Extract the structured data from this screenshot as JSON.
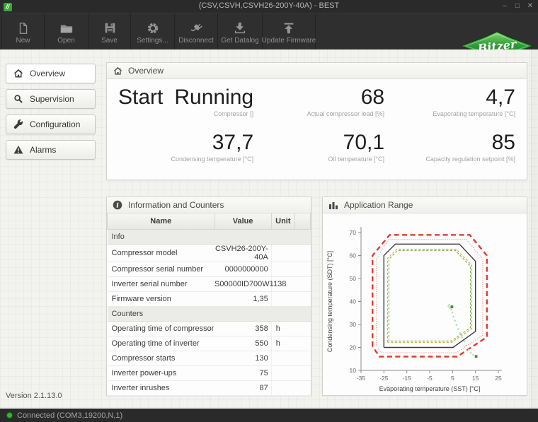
{
  "window": {
    "title": "(CSV,CSVH,CSVH26-200Y-40A) - BEST",
    "controls": {
      "minimize": "–",
      "maximize": "□",
      "close": "✕"
    }
  },
  "toolbar": {
    "buttons": [
      {
        "label": "New"
      },
      {
        "label": "Open"
      },
      {
        "label": "Save"
      },
      {
        "label": "Settings..."
      },
      {
        "label": "Disconnect"
      },
      {
        "label": "Get Datalog"
      },
      {
        "label": "Update Firmware"
      }
    ],
    "logo_text": "Bitzer"
  },
  "icons": {
    "app-icon": "bitzer-green-square",
    "new-button": "blank-page",
    "open-button": "folder",
    "save-button": "floppy-disk",
    "settings-button": "gear",
    "disconnect-button": "plug",
    "get-datalog-button": "arrow-down-into-tray",
    "update-firmware-button": "arrow-up-to-bar",
    "sidebar-overview": "home",
    "sidebar-supervision": "magnifier",
    "sidebar-configuration": "wrench",
    "sidebar-alarms": "warning-triangle",
    "information-panel": "info-circle",
    "application-range-panel": "bar-chart",
    "statusbar": "green-dot"
  },
  "sidebar": {
    "items": [
      {
        "label": "Overview",
        "selected": true
      },
      {
        "label": "Supervision",
        "selected": false
      },
      {
        "label": "Configuration",
        "selected": false
      },
      {
        "label": "Alarms",
        "selected": false
      }
    ]
  },
  "overview": {
    "title": "Overview",
    "compressor": {
      "start": "Start",
      "status": "Running",
      "label": "Compressor []"
    },
    "metrics": [
      {
        "value": "68",
        "label": "Actual compressor load [%]"
      },
      {
        "value": "4,7",
        "label": "Evaporating temperature [°C]"
      },
      {
        "value": "37,7",
        "label": "Condensing temperature [°C]"
      },
      {
        "value": "70,1",
        "label": "Oil temperature [°C]"
      },
      {
        "value": "85",
        "label": "Capacity regulation setpoint [%]"
      }
    ]
  },
  "info_panel": {
    "title": "Information and Counters",
    "columns": [
      "Name",
      "Value",
      "Unit"
    ],
    "sections": [
      {
        "name": "Info",
        "rows": [
          [
            "Compressor model",
            "CSVH26-200Y-40A",
            ""
          ],
          [
            "Compressor serial number",
            "0000000000",
            ""
          ],
          [
            "Inverter serial number",
            "S00000ID700W1138",
            ""
          ],
          [
            "Firmware version",
            "1,35",
            ""
          ]
        ]
      },
      {
        "name": "Counters",
        "rows": [
          [
            "Operating time of compressor",
            "358",
            "h"
          ],
          [
            "Operating time of inverter",
            "550",
            "h"
          ],
          [
            "Compressor starts",
            "130",
            ""
          ],
          [
            "Inverter power-ups",
            "75",
            ""
          ],
          [
            "Inverter inrushes",
            "87",
            ""
          ]
        ]
      }
    ]
  },
  "chart_panel": {
    "title": "Application Range"
  },
  "chart_data": {
    "type": "line",
    "title": "Application Range",
    "xlabel": "Evaporating temperature (SST) [°C]",
    "ylabel": "Condensing temperature (SDT) [°C]",
    "xlim": [
      -35,
      25
    ],
    "ylim": [
      10,
      70
    ],
    "xticks": [
      -35,
      -25,
      -15,
      -5,
      5,
      15,
      25
    ],
    "yticks": [
      10,
      20,
      30,
      40,
      50,
      60,
      70
    ],
    "grid": false,
    "legend": "none",
    "series": [
      {
        "name": "absolute-limit-envelope",
        "color": "#e03c31",
        "style": "dash-thick",
        "points": [
          [
            -30,
            20.5
          ],
          [
            -30,
            60
          ],
          [
            -22.5,
            69
          ],
          [
            12.5,
            69
          ],
          [
            20,
            60
          ],
          [
            20,
            24.5
          ],
          [
            7,
            16
          ],
          [
            -27,
            16
          ],
          [
            -30,
            20.5
          ]
        ]
      },
      {
        "name": "outer-warning-envelope",
        "color": "#e8958d",
        "style": "dot",
        "points": [
          [
            -28.3,
            21
          ],
          [
            -28.3,
            58.5
          ],
          [
            -23,
            67
          ],
          [
            11,
            67
          ],
          [
            18.2,
            58.5
          ],
          [
            18.2,
            25.3
          ],
          [
            6.7,
            17.7
          ],
          [
            -26.3,
            17.7
          ],
          [
            -28.3,
            21
          ]
        ]
      },
      {
        "name": "operating-envelope",
        "color": "#3a3a3a",
        "style": "solid",
        "points": [
          [
            -25,
            20
          ],
          [
            -25,
            60
          ],
          [
            -20,
            65
          ],
          [
            8,
            65
          ],
          [
            15,
            57.5
          ],
          [
            15,
            27
          ],
          [
            5.2,
            20
          ],
          [
            -25,
            20
          ]
        ]
      },
      {
        "name": "inner-envelope-yellow",
        "color": "#c9a83a",
        "style": "dash",
        "points": [
          [
            -23.4,
            22.2
          ],
          [
            -23.4,
            58.8
          ],
          [
            -19.3,
            62.8
          ],
          [
            6.6,
            62.8
          ],
          [
            13.4,
            55.8
          ],
          [
            13.4,
            28.2
          ],
          [
            4.6,
            22.2
          ],
          [
            -23.4,
            22.2
          ]
        ]
      },
      {
        "name": "inner-envelope-green",
        "color": "#7cab44",
        "style": "dash",
        "points": [
          [
            -22.8,
            22.8
          ],
          [
            -22.8,
            58.4
          ],
          [
            -19,
            62.2
          ],
          [
            6.2,
            62.2
          ],
          [
            12.8,
            55.4
          ],
          [
            12.8,
            28.6
          ],
          [
            4.4,
            22.8
          ],
          [
            -22.8,
            22.8
          ]
        ]
      },
      {
        "name": "operating-trail",
        "color": "#b9dcb4",
        "style": "dots",
        "points": [
          [
            3.6,
            38.6
          ],
          [
            3.2,
            37.9
          ],
          [
            3.8,
            37.1
          ],
          [
            4.5,
            36.6
          ],
          [
            4.9,
            35.2
          ],
          [
            5.4,
            33.4
          ],
          [
            6.0,
            31.6
          ],
          [
            6.7,
            29.8
          ],
          [
            7.5,
            28.0
          ],
          [
            8.3,
            26.2
          ],
          [
            9.2,
            24.4
          ],
          [
            10.1,
            22.6
          ],
          [
            11.0,
            20.8
          ],
          [
            12.0,
            19.0
          ],
          [
            13.0,
            17.6
          ],
          [
            14.0,
            16.8
          ]
        ]
      },
      {
        "name": "operating-points",
        "color": "#3f8c3a",
        "style": "squares",
        "points": [
          [
            4.7,
            37.7
          ],
          [
            15.3,
            16.1
          ]
        ]
      }
    ]
  },
  "version": {
    "text": "Version 2.1.13.0"
  },
  "statusbar": {
    "text": "Connected (COM3,19200,N,1)"
  }
}
